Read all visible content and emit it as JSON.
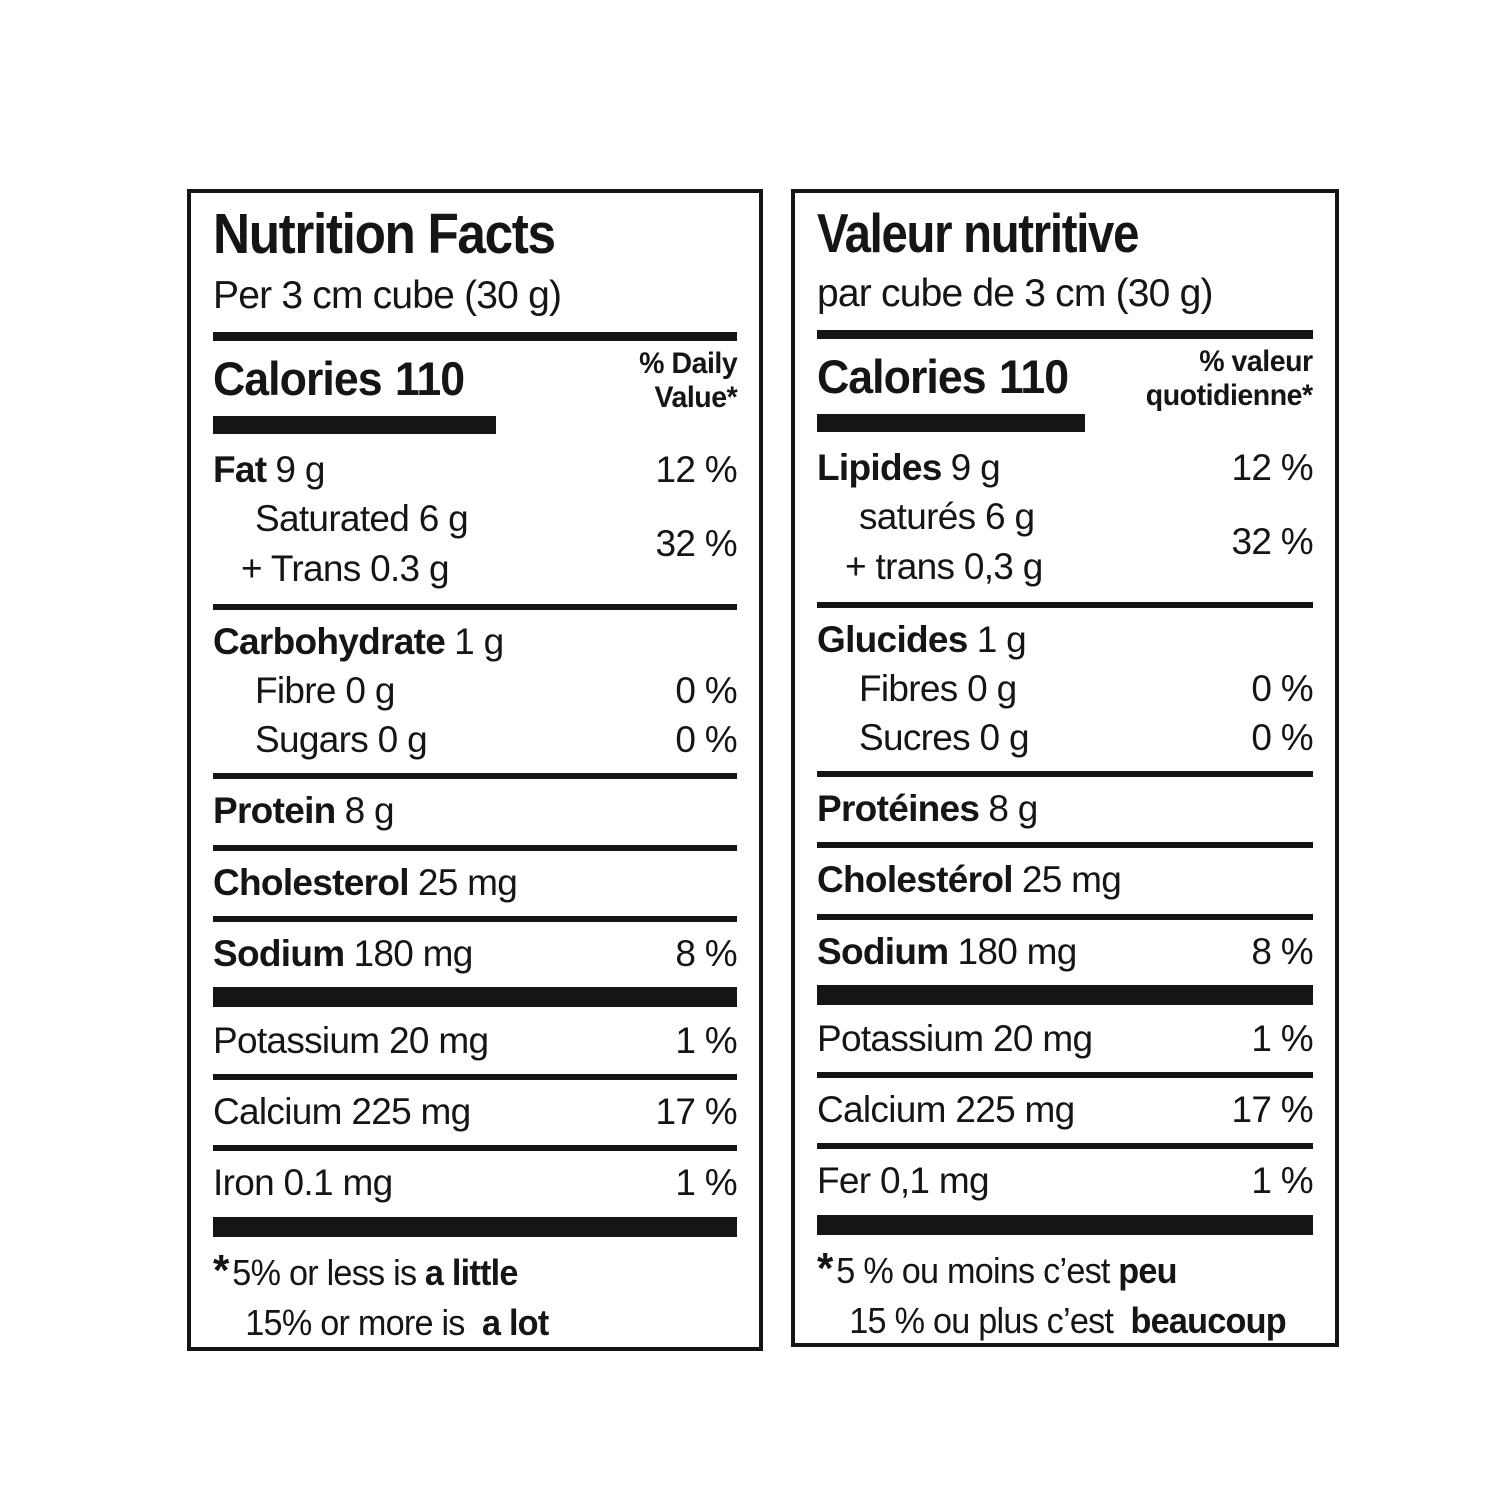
{
  "labels": {
    "en": {
      "title": "Nutrition Facts",
      "serving": "Per 3 cm cube (30 g)",
      "calories_label": "Calories",
      "calories_value": "110",
      "dv_line1": "% Daily",
      "dv_line2": "Value*",
      "fat": {
        "label": "Fat",
        "amount": "9 g",
        "dv": "12 %"
      },
      "satfat": {
        "line1": "Saturated 6 g",
        "line2": "+ Trans 0.3 g",
        "dv": "32 %"
      },
      "carb": {
        "label": "Carbohydrate",
        "amount": "1 g"
      },
      "fibre": {
        "label": "Fibre 0 g",
        "dv": "0 %"
      },
      "sugars": {
        "label": "Sugars 0 g",
        "dv": "0 %"
      },
      "protein": {
        "label": "Protein",
        "amount": "8 g"
      },
      "cholesterol": {
        "label": "Cholesterol",
        "amount": "25 mg"
      },
      "sodium": {
        "label": "Sodium",
        "amount": "180 mg",
        "dv": "8 %"
      },
      "potassium": {
        "label": "Potassium 20 mg",
        "dv": "1 %"
      },
      "calcium": {
        "label": "Calcium 225 mg",
        "dv": "17 %"
      },
      "iron": {
        "label": "Iron 0.1 mg",
        "dv": "1 %"
      },
      "footnote": {
        "star": "*",
        "line1_text": "5% or less is",
        "line1_bold": "a little",
        "line2_text": "15% or more is",
        "line2_bold": "a lot"
      }
    },
    "fr": {
      "title": "Valeur nutritive",
      "serving": "par cube de 3 cm (30 g)",
      "calories_label": "Calories",
      "calories_value": "110",
      "dv_line1": "% valeur",
      "dv_line2": "quotidienne*",
      "fat": {
        "label": "Lipides",
        "amount": "9 g",
        "dv": "12 %"
      },
      "satfat": {
        "line1": "saturés 6 g",
        "line2": "+ trans 0,3 g",
        "dv": "32 %"
      },
      "carb": {
        "label": "Glucides",
        "amount": "1 g"
      },
      "fibre": {
        "label": "Fibres 0 g",
        "dv": "0 %"
      },
      "sugars": {
        "label": "Sucres 0 g",
        "dv": "0 %"
      },
      "protein": {
        "label": "Protéines",
        "amount": "8 g"
      },
      "cholesterol": {
        "label": "Cholestérol",
        "amount": "25 mg"
      },
      "sodium": {
        "label": "Sodium",
        "amount": "180 mg",
        "dv": "8 %"
      },
      "potassium": {
        "label": "Potassium 20 mg",
        "dv": "1 %"
      },
      "calcium": {
        "label": "Calcium 225 mg",
        "dv": "17 %"
      },
      "iron": {
        "label": "Fer 0,1 mg",
        "dv": "1 %"
      },
      "footnote": {
        "star": "*",
        "line1_text": "5 % ou moins c’est",
        "line1_bold": "peu",
        "line2_text": "15 % ou plus c’est",
        "line2_bold": "beaucoup"
      }
    }
  },
  "colors": {
    "ink": "#151515",
    "background": "#ffffff"
  }
}
